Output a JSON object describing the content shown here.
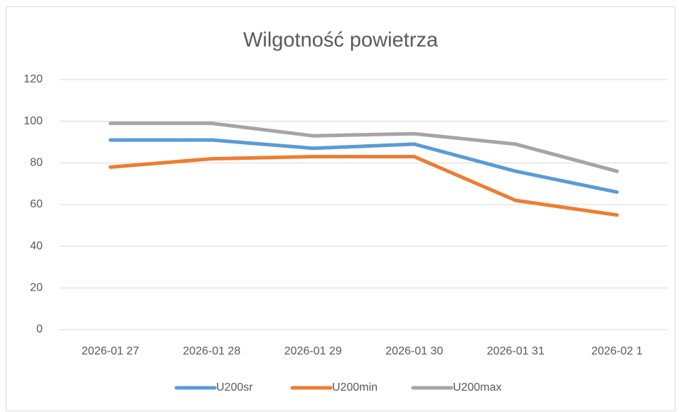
{
  "chart_data": {
    "type": "line",
    "title": "Wilgotność powietrza",
    "categories": [
      "2026-01 27",
      "2026-01 28",
      "2026-01 29",
      "2026-01 30",
      "2026-01 31",
      "2026-02 1"
    ],
    "series": [
      {
        "name": "U200sr",
        "color": "#5b9bd5",
        "values": [
          91,
          91,
          87,
          89,
          76,
          66
        ]
      },
      {
        "name": "U200min",
        "color": "#ed7d31",
        "values": [
          78,
          82,
          83,
          83,
          62,
          55
        ]
      },
      {
        "name": "U200max",
        "color": "#a5a5a5",
        "values": [
          99,
          99,
          93,
          94,
          89,
          76
        ]
      }
    ],
    "ylim": [
      0,
      120
    ],
    "yticks": [
      0,
      20,
      40,
      60,
      80,
      100,
      120
    ],
    "grid": true,
    "legend": "bottom"
  }
}
